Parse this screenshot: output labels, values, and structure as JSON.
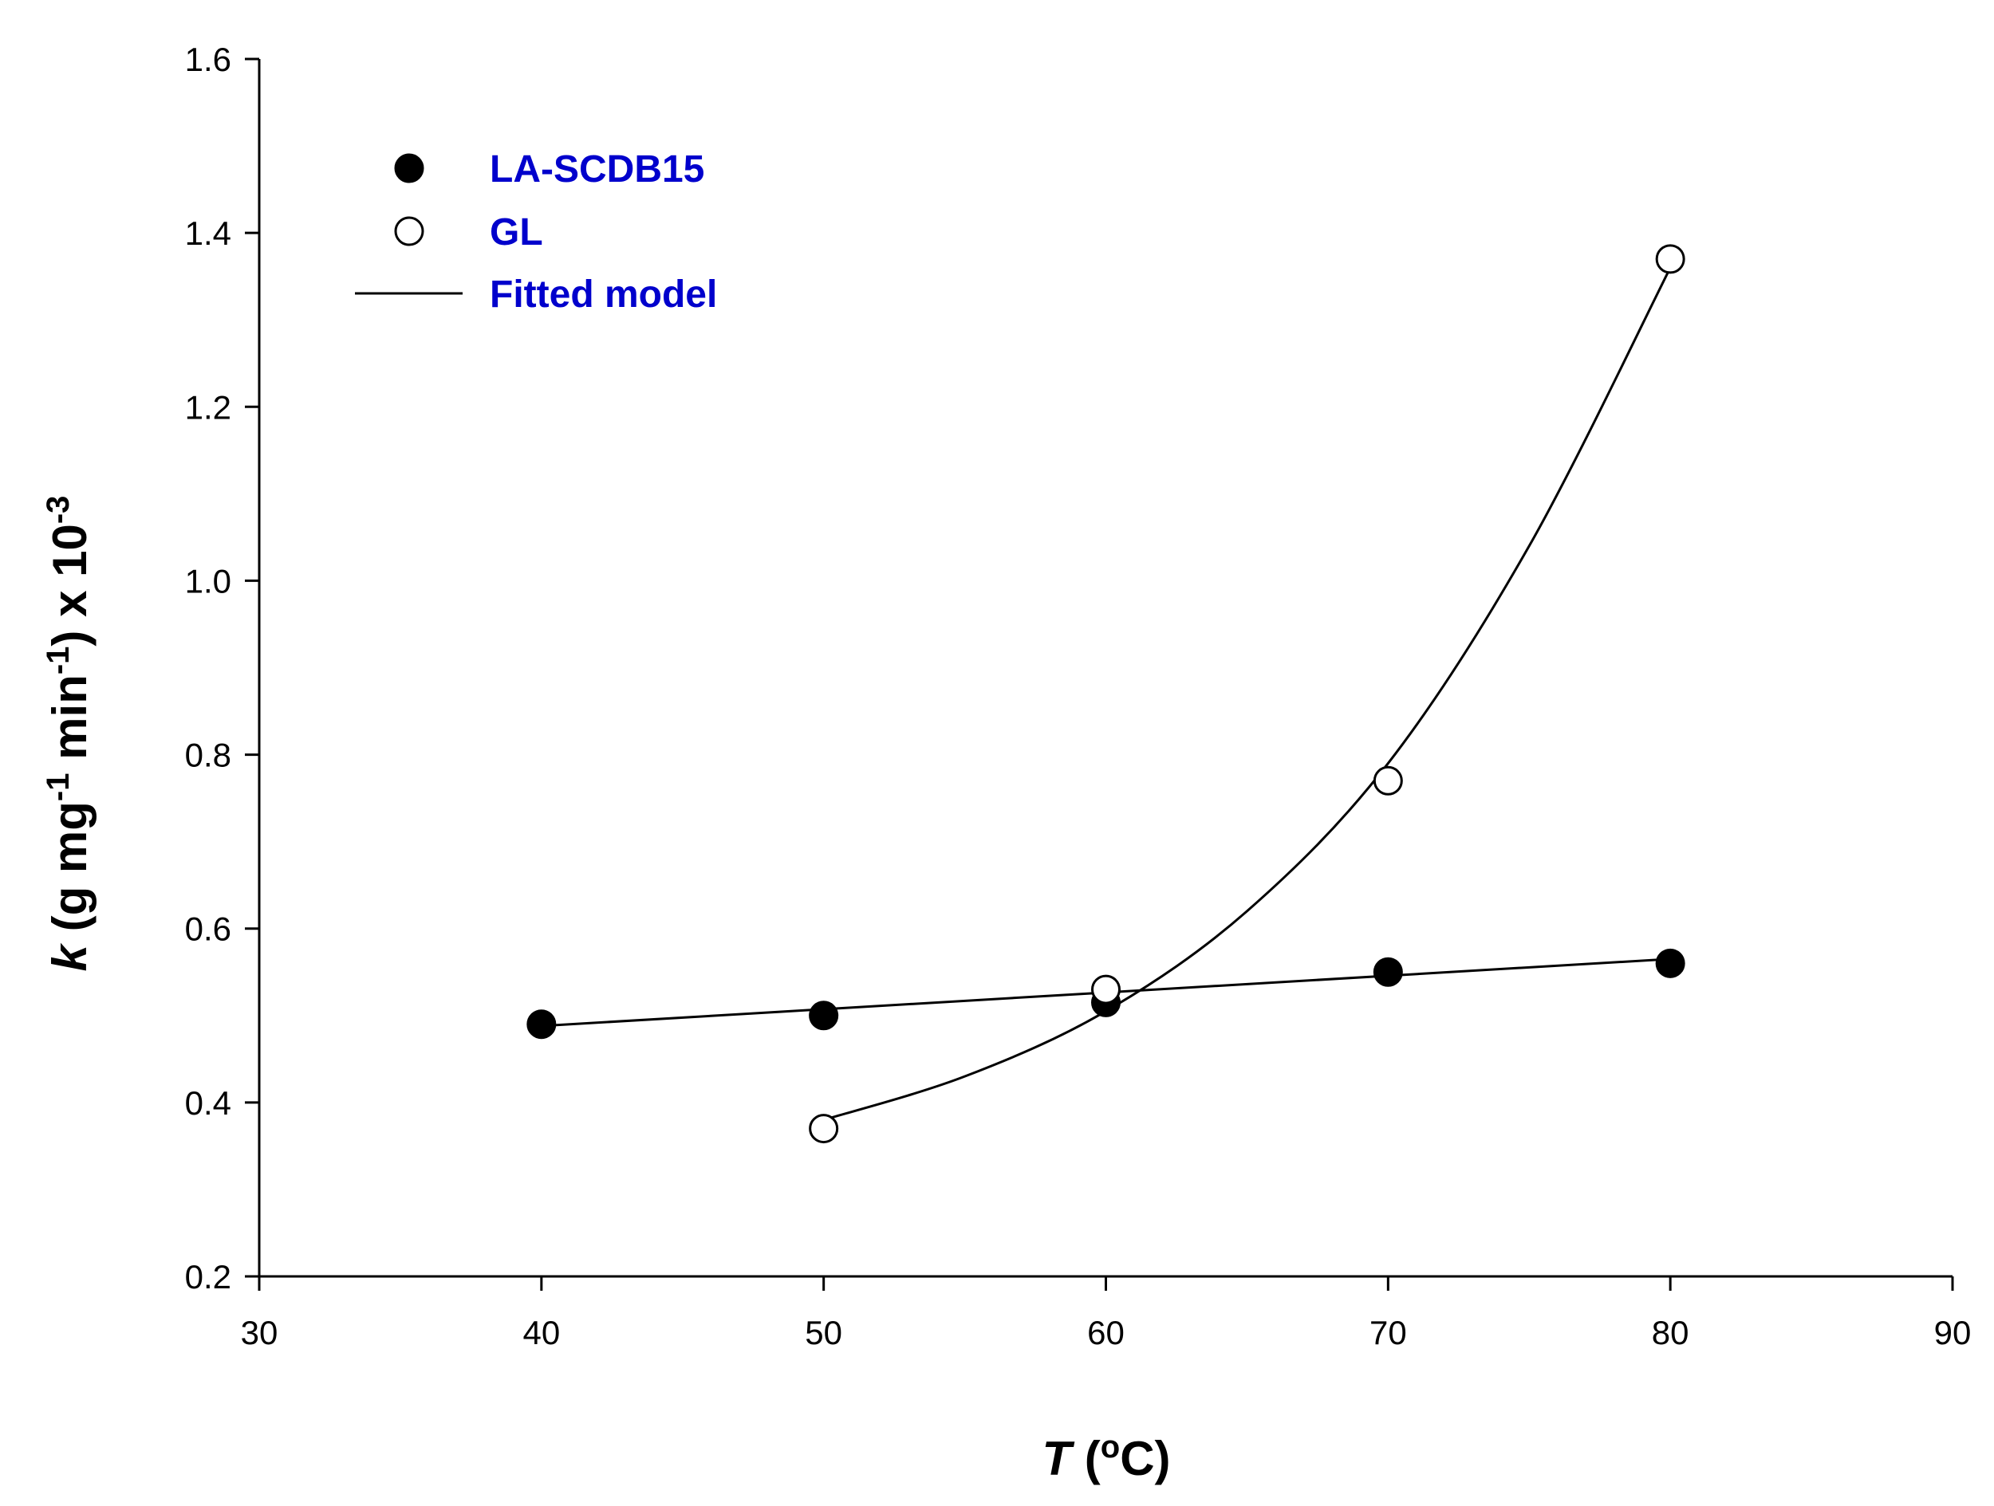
{
  "chart_data": {
    "type": "scatter",
    "title": "",
    "xlabel": {
      "main": "T",
      "open": " (",
      "sup": "o",
      "rest": "C)"
    },
    "ylabel": {
      "main": "k",
      "p1": " (g mg",
      "sup1": "-1",
      "p2": " min",
      "sup2": "-1",
      "p3": ") x 10",
      "sup3": "-3"
    },
    "xlim": [
      30,
      90
    ],
    "ylim": [
      0.2,
      1.6
    ],
    "xticks": [
      30,
      40,
      50,
      60,
      70,
      80,
      90
    ],
    "yticks": [
      0.2,
      0.4,
      0.6,
      0.8,
      1.0,
      1.2,
      1.4,
      1.6
    ],
    "legend_position": "top-left",
    "colors": {
      "legend_text": "#0000cc",
      "axis": "#000000"
    },
    "series": [
      {
        "name": "LA-SCDB15",
        "marker": "filled-circle",
        "x": [
          40,
          50,
          60,
          70,
          80
        ],
        "y": [
          0.49,
          0.5,
          0.515,
          0.55,
          0.56
        ]
      },
      {
        "name": "GL",
        "marker": "open-circle",
        "x": [
          50,
          60,
          70,
          80
        ],
        "y": [
          0.37,
          0.53,
          0.77,
          1.37
        ]
      },
      {
        "name": "Fitted model",
        "marker": "line",
        "fits": [
          {
            "for": "LA-SCDB15",
            "model": "linear",
            "x": [
              40,
              80
            ],
            "y": [
              0.488,
              0.565
            ]
          },
          {
            "for": "GL",
            "model": "exponential",
            "x": [
              50,
              55,
              60,
              65,
              70,
              75,
              80
            ],
            "y": [
              0.38,
              0.43,
              0.505,
              0.62,
              0.79,
              1.04,
              1.36
            ]
          }
        ]
      }
    ]
  }
}
